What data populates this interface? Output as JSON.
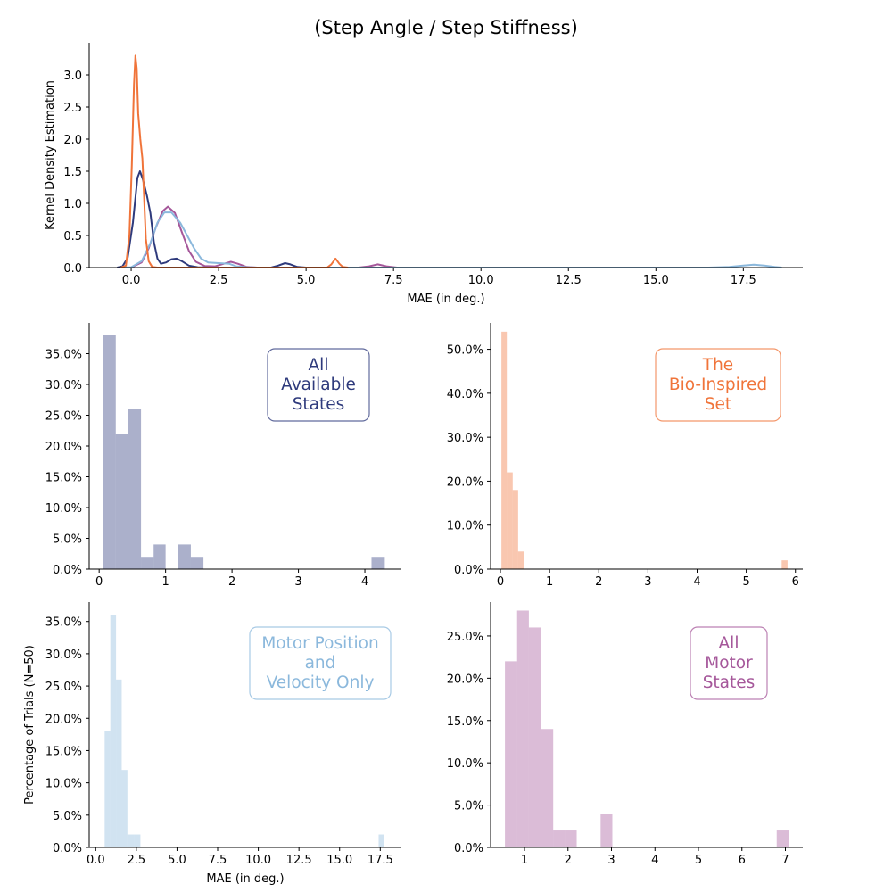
{
  "title": "(Step Angle / Step Stiffness)",
  "colors": {
    "all_states": "#2e3a7c",
    "bio_inspired": "#f0743a",
    "motor_pos_vel": "#8bb8dc",
    "all_motor": "#a5579a"
  },
  "chart_data": [
    {
      "id": "kde",
      "type": "line",
      "xlabel": "MAE (in deg.)",
      "ylabel": "Kernel Density Estimation",
      "xlim": [
        -1.2,
        19.2
      ],
      "ylim": [
        0,
        3.5
      ],
      "xticks": [
        0.0,
        2.5,
        5.0,
        7.5,
        10.0,
        12.5,
        15.0,
        17.5
      ],
      "xtick_labels": [
        "0.0",
        "2.5",
        "5.0",
        "7.5",
        "10.0",
        "12.5",
        "15.0",
        "17.5"
      ],
      "yticks": [
        0.0,
        0.5,
        1.0,
        1.5,
        2.0,
        2.5,
        3.0
      ],
      "ytick_labels": [
        "0.0",
        "0.5",
        "1.0",
        "1.5",
        "2.0",
        "2.5",
        "3.0"
      ],
      "series": [
        {
          "key": "all_motor",
          "color": "#a5579a",
          "points": [
            [
              -0.4,
              0
            ],
            [
              0,
              0.002
            ],
            [
              0.3,
              0.08
            ],
            [
              0.5,
              0.3
            ],
            [
              0.7,
              0.62
            ],
            [
              0.9,
              0.88
            ],
            [
              1.05,
              0.95
            ],
            [
              1.25,
              0.85
            ],
            [
              1.45,
              0.55
            ],
            [
              1.65,
              0.26
            ],
            [
              1.85,
              0.09
            ],
            [
              2.1,
              0.025
            ],
            [
              2.4,
              0.02
            ],
            [
              2.65,
              0.06
            ],
            [
              2.85,
              0.09
            ],
            [
              3.05,
              0.06
            ],
            [
              3.3,
              0.01
            ],
            [
              3.6,
              0
            ],
            [
              6.5,
              0
            ],
            [
              6.8,
              0.02
            ],
            [
              7.05,
              0.05
            ],
            [
              7.3,
              0.02
            ],
            [
              7.6,
              0
            ]
          ]
        },
        {
          "key": "motor_pos_vel",
          "color": "#8bb8dc",
          "points": [
            [
              -0.4,
              0
            ],
            [
              0,
              0.005
            ],
            [
              0.3,
              0.1
            ],
            [
              0.55,
              0.38
            ],
            [
              0.75,
              0.7
            ],
            [
              0.95,
              0.86
            ],
            [
              1.15,
              0.86
            ],
            [
              1.4,
              0.7
            ],
            [
              1.6,
              0.5
            ],
            [
              1.8,
              0.3
            ],
            [
              2.0,
              0.14
            ],
            [
              2.2,
              0.08
            ],
            [
              2.5,
              0.07
            ],
            [
              2.8,
              0.06
            ],
            [
              3.0,
              0.02
            ],
            [
              3.3,
              0.005
            ],
            [
              3.6,
              0
            ],
            [
              8,
              0
            ],
            [
              12,
              0
            ],
            [
              16.5,
              0
            ],
            [
              17.1,
              0.01
            ],
            [
              17.5,
              0.03
            ],
            [
              17.8,
              0.045
            ],
            [
              18.1,
              0.03
            ],
            [
              18.4,
              0.01
            ],
            [
              18.6,
              0
            ]
          ]
        },
        {
          "key": "all_states",
          "color": "#2e3a7c",
          "points": [
            [
              -0.4,
              0
            ],
            [
              -0.25,
              0.02
            ],
            [
              -0.1,
              0.15
            ],
            [
              0.05,
              0.7
            ],
            [
              0.18,
              1.4
            ],
            [
              0.25,
              1.5
            ],
            [
              0.33,
              1.38
            ],
            [
              0.45,
              1.12
            ],
            [
              0.55,
              0.85
            ],
            [
              0.65,
              0.4
            ],
            [
              0.75,
              0.14
            ],
            [
              0.85,
              0.06
            ],
            [
              1.0,
              0.08
            ],
            [
              1.15,
              0.13
            ],
            [
              1.3,
              0.14
            ],
            [
              1.45,
              0.1
            ],
            [
              1.65,
              0.03
            ],
            [
              1.9,
              0.005
            ],
            [
              2.2,
              0
            ],
            [
              4.0,
              0
            ],
            [
              4.2,
              0.03
            ],
            [
              4.4,
              0.07
            ],
            [
              4.55,
              0.05
            ],
            [
              4.75,
              0.01
            ],
            [
              5.0,
              0
            ]
          ]
        },
        {
          "key": "bio_inspired",
          "color": "#f0743a",
          "points": [
            [
              -0.3,
              0
            ],
            [
              -0.15,
              0.03
            ],
            [
              -0.05,
              0.5
            ],
            [
              0.02,
              1.6
            ],
            [
              0.08,
              2.85
            ],
            [
              0.12,
              3.3
            ],
            [
              0.16,
              3.1
            ],
            [
              0.2,
              2.4
            ],
            [
              0.26,
              2.0
            ],
            [
              0.32,
              1.7
            ],
            [
              0.36,
              1.2
            ],
            [
              0.42,
              0.45
            ],
            [
              0.5,
              0.1
            ],
            [
              0.6,
              0.01
            ],
            [
              0.75,
              0
            ],
            [
              5.6,
              0
            ],
            [
              5.72,
              0.05
            ],
            [
              5.84,
              0.14
            ],
            [
              5.95,
              0.06
            ],
            [
              6.05,
              0.01
            ],
            [
              6.2,
              0
            ]
          ]
        }
      ]
    },
    {
      "id": "all_states",
      "type": "bar",
      "key": "all_states",
      "color": "#2e3a7c",
      "label_lines": [
        "All",
        "Available",
        "States"
      ],
      "xlim": [
        -0.15,
        4.55
      ],
      "ylim": [
        0,
        0.4
      ],
      "xticks": [
        0,
        1,
        2,
        3,
        4
      ],
      "xtick_labels": [
        "0",
        "1",
        "2",
        "3",
        "4"
      ],
      "yticks": [
        0,
        0.05,
        0.1,
        0.15,
        0.2,
        0.25,
        0.3,
        0.35
      ],
      "ytick_labels": [
        "0.0%",
        "5.0%",
        "10.0%",
        "15.0%",
        "20.0%",
        "25.0%",
        "30.0%",
        "35.0%"
      ],
      "bins": [
        [
          0.06,
          0.25,
          0.38
        ],
        [
          0.25,
          0.44,
          0.22
        ],
        [
          0.44,
          0.63,
          0.26
        ],
        [
          0.63,
          0.82,
          0.02
        ],
        [
          0.82,
          1.0,
          0.04
        ],
        [
          1.0,
          1.19,
          0
        ],
        [
          1.19,
          1.38,
          0.04
        ],
        [
          1.38,
          1.57,
          0.02
        ],
        [
          4.1,
          4.3,
          0.02
        ]
      ]
    },
    {
      "id": "bio_inspired",
      "type": "bar",
      "key": "bio_inspired",
      "color": "#f0743a",
      "label_lines": [
        "The",
        "Bio-Inspired",
        "Set"
      ],
      "xlim": [
        -0.2,
        6.15
      ],
      "ylim": [
        0,
        0.56
      ],
      "xticks": [
        0,
        1,
        2,
        3,
        4,
        5,
        6
      ],
      "xtick_labels": [
        "0",
        "1",
        "2",
        "3",
        "4",
        "5",
        "6"
      ],
      "yticks": [
        0,
        0.1,
        0.2,
        0.3,
        0.4,
        0.5
      ],
      "ytick_labels": [
        "0.0%",
        "10.0%",
        "20.0%",
        "30.0%",
        "40.0%",
        "50.0%"
      ],
      "bins": [
        [
          0.02,
          0.13,
          0.54
        ],
        [
          0.13,
          0.25,
          0.22
        ],
        [
          0.25,
          0.36,
          0.18
        ],
        [
          0.36,
          0.48,
          0.04
        ],
        [
          5.72,
          5.84,
          0.02
        ]
      ]
    },
    {
      "id": "motor_pos_vel",
      "type": "bar",
      "key": "motor_pos_vel",
      "color": "#8bb8dc",
      "label_lines": [
        "Motor Position",
        "and",
        "Velocity Only"
      ],
      "xlabel": "MAE (in deg.)",
      "ylabel": "Percentage of Trials (N=50)",
      "xlim": [
        -0.4,
        18.8
      ],
      "ylim": [
        0,
        0.38
      ],
      "xticks": [
        0.0,
        2.5,
        5.0,
        7.5,
        10.0,
        12.5,
        15.0,
        17.5
      ],
      "xtick_labels": [
        "0.0",
        "2.5",
        "5.0",
        "7.5",
        "10.0",
        "12.5",
        "15.0",
        "17.5"
      ],
      "yticks": [
        0,
        0.05,
        0.1,
        0.15,
        0.2,
        0.25,
        0.3,
        0.35
      ],
      "ytick_labels": [
        "0.0%",
        "5.0%",
        "10.0%",
        "15.0%",
        "20.0%",
        "25.0%",
        "30.0%",
        "35.0%"
      ],
      "bins": [
        [
          0.55,
          0.9,
          0.18
        ],
        [
          0.9,
          1.25,
          0.36
        ],
        [
          1.25,
          1.6,
          0.26
        ],
        [
          1.6,
          1.95,
          0.12
        ],
        [
          1.95,
          2.35,
          0.02
        ],
        [
          2.35,
          2.75,
          0.02
        ],
        [
          17.4,
          17.75,
          0.02
        ]
      ]
    },
    {
      "id": "all_motor",
      "type": "bar",
      "key": "all_motor",
      "color": "#a5579a",
      "label_lines": [
        "All",
        "Motor",
        "States"
      ],
      "xlim": [
        0.22,
        7.4
      ],
      "ylim": [
        0,
        0.29
      ],
      "xticks": [
        1,
        2,
        3,
        4,
        5,
        6,
        7
      ],
      "xtick_labels": [
        "1",
        "2",
        "3",
        "4",
        "5",
        "6",
        "7"
      ],
      "yticks": [
        0,
        0.05,
        0.1,
        0.15,
        0.2,
        0.25
      ],
      "ytick_labels": [
        "0.0%",
        "5.0%",
        "10.0%",
        "15.0%",
        "20.0%",
        "25.0%"
      ],
      "bins": [
        [
          0.55,
          0.83,
          0.22
        ],
        [
          0.83,
          1.1,
          0.28
        ],
        [
          1.1,
          1.38,
          0.26
        ],
        [
          1.38,
          1.66,
          0.14
        ],
        [
          1.66,
          1.93,
          0.02
        ],
        [
          1.93,
          2.2,
          0.02
        ],
        [
          2.75,
          3.02,
          0.04
        ],
        [
          6.8,
          7.08,
          0.02
        ]
      ]
    }
  ]
}
